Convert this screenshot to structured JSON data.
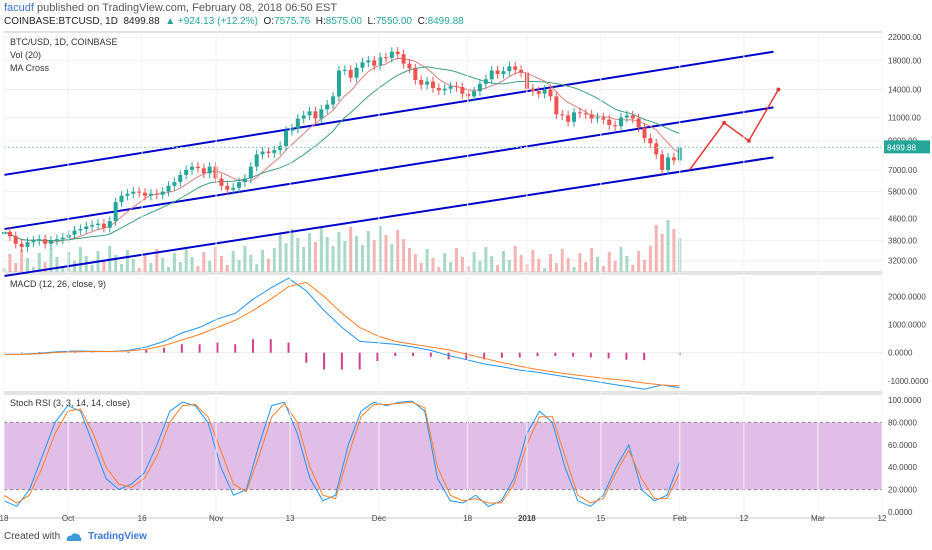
{
  "header": {
    "user": "facudf",
    "published_text": " published on TradingView.com, February 08, 2018 06:50 EST",
    "symbol": "COINBASE:BTCUSD, 1D",
    "last": "8499.88",
    "change": "▲ +924.13 (+12.2%)",
    "open_label": "O:",
    "open": "7575.76",
    "high_label": "H:",
    "high": "8575.00",
    "low_label": "L:",
    "low": "7550.00",
    "close_label": "C:",
    "close": "8499.88"
  },
  "panels": {
    "price": [
      "BTC/USD, 1D, COINBASE",
      "Vol (20)",
      "MA Cross"
    ],
    "macd": "MACD (12, 26, close, 9)",
    "rsi": "Stoch RSI (3, 3, 14, 14, close)"
  },
  "footer": {
    "created": "Created with",
    "brand": "TradingView"
  },
  "colors": {
    "up": "#26a69a",
    "down": "#ef5350",
    "channel": "#0000cc",
    "arrow": "#e53935",
    "macd": "#2196f3",
    "signal": "#ff7f27",
    "rsi_band": "#e1bee7"
  },
  "chart_data": [
    {
      "type": "candlestick",
      "title": "BTC/USD, 1D, COINBASE",
      "y_axis_ticks": [
        "22000.00",
        "18000.00",
        "14000.00",
        "11000.00",
        "9000.00",
        "7000.00",
        "5800.00",
        "4600.00",
        "3800.00",
        "3200.00"
      ],
      "y_scale": "log",
      "last_price_label": "8499.88",
      "x_tick_labels": [
        "18",
        "Oct",
        "16",
        "Nov",
        "13",
        "Dec",
        "18",
        "2018",
        "15",
        "Feb",
        "12",
        "Mar",
        "12"
      ],
      "x_tick_days": [
        0,
        13,
        28,
        43,
        58,
        76,
        94,
        106,
        121,
        137,
        150,
        165,
        178
      ],
      "close_series": [
        4100,
        3950,
        3700,
        3600,
        3750,
        3800,
        3850,
        3700,
        3800,
        3850,
        3900,
        4000,
        4150,
        4200,
        4300,
        4350,
        4400,
        4250,
        4500,
        5300,
        5600,
        5700,
        5800,
        5750,
        5600,
        5700,
        5650,
        5800,
        6100,
        6300,
        6700,
        7000,
        7200,
        7100,
        6800,
        7200,
        6500,
        6100,
        5900,
        6000,
        6300,
        6500,
        7200,
        8000,
        8200,
        8100,
        8300,
        8600,
        9800,
        10000,
        10900,
        11200,
        11600,
        10900,
        11800,
        12300,
        13200,
        16500,
        16600,
        15500,
        16900,
        17700,
        18000,
        17200,
        18500,
        18400,
        19400,
        19000,
        17500,
        16800,
        15200,
        14600,
        15000,
        14200,
        13900,
        14100,
        14400,
        14300,
        13500,
        13200,
        13800,
        14700,
        15300,
        16500,
        16000,
        16400,
        17100,
        16600,
        16200,
        14100,
        13800,
        13500,
        14000,
        13200,
        11300,
        11200,
        10600,
        11500,
        11400,
        11300,
        10900,
        11000,
        10800,
        10300,
        10200,
        11000,
        11200,
        10900,
        10100,
        9200,
        8800,
        8000,
        7000,
        7800,
        7600,
        8500
      ],
      "channel_lines_note": "three parallel ascending channel lines",
      "annotations": [
        "red zig-zag projection arrows"
      ]
    },
    {
      "type": "line",
      "title": "MACD (12, 26, close, 9)",
      "y_axis_ticks": [
        "2000.0000",
        "1000.0000",
        "0.0000",
        "-1000.0000"
      ],
      "series": [
        {
          "values": [
            -60,
            -50,
            -20,
            30,
            60,
            50,
            40,
            80,
            200,
            400,
            700,
            900,
            1200,
            1400,
            1900,
            2300,
            2650,
            2200,
            1500,
            900,
            400,
            350,
            300,
            200,
            80,
            -100,
            -250,
            -400,
            -500,
            -620,
            -700,
            -800,
            -900,
            -1000,
            -1100,
            -1200,
            -1300,
            -1150,
            -1250
          ]
        },
        {
          "values": [
            -70,
            -60,
            -40,
            10,
            30,
            40,
            40,
            60,
            120,
            250,
            450,
            650,
            900,
            1150,
            1500,
            1900,
            2350,
            2500,
            2000,
            1400,
            900,
            600,
            400,
            300,
            200,
            100,
            -50,
            -200,
            -350,
            -480,
            -600,
            -700,
            -780,
            -860,
            -930,
            -990,
            -1080,
            -1150,
            -1180
          ]
        }
      ]
    },
    {
      "type": "line",
      "title": "Stoch RSI (3, 3, 14, 14, close)",
      "y_axis_ticks": [
        "100.0000",
        "80.0000",
        "60.0000",
        "40.0000",
        "20.0000",
        "0.0000"
      ],
      "band": [
        20,
        80
      ],
      "series": [
        {
          "values": [
            10,
            5,
            20,
            50,
            80,
            95,
            90,
            60,
            30,
            20,
            25,
            35,
            60,
            90,
            98,
            95,
            80,
            40,
            15,
            20,
            60,
            95,
            98,
            70,
            30,
            10,
            15,
            60,
            90,
            98,
            95,
            98,
            99,
            90,
            30,
            10,
            8,
            15,
            5,
            10,
            30,
            70,
            90,
            80,
            40,
            10,
            5,
            15,
            40,
            60,
            20,
            10,
            15,
            45
          ]
        },
        {
          "values": [
            15,
            8,
            15,
            40,
            70,
            90,
            92,
            70,
            40,
            25,
            22,
            30,
            50,
            80,
            95,
            96,
            85,
            55,
            25,
            18,
            50,
            85,
            97,
            80,
            40,
            15,
            12,
            50,
            85,
            96,
            96,
            97,
            98,
            93,
            40,
            15,
            10,
            12,
            8,
            8,
            25,
            60,
            85,
            85,
            50,
            15,
            8,
            12,
            35,
            55,
            30,
            12,
            12,
            35
          ]
        }
      ]
    }
  ]
}
